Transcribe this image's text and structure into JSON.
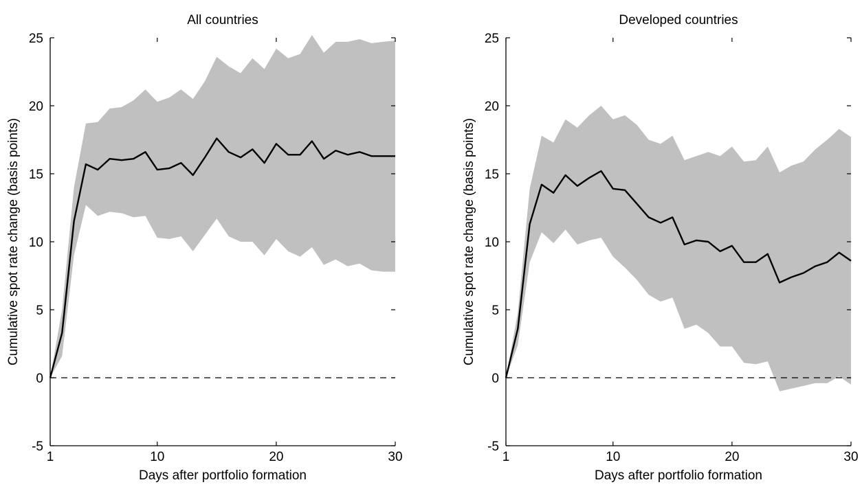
{
  "chart_data": [
    {
      "type": "line",
      "title": "All countries",
      "xlabel": "Days after portfolio formation",
      "ylabel": "Cumulative spot rate change (basis points)",
      "xlim": [
        1,
        30
      ],
      "ylim": [
        -5,
        25
      ],
      "xticks": [
        1,
        10,
        20,
        30
      ],
      "yticks": [
        -5,
        0,
        5,
        10,
        15,
        20,
        25
      ],
      "grid": false,
      "reference_line": 0,
      "x": [
        1,
        2,
        3,
        4,
        5,
        6,
        7,
        8,
        9,
        10,
        11,
        12,
        13,
        14,
        15,
        16,
        17,
        18,
        19,
        20,
        21,
        22,
        23,
        24,
        25,
        26,
        27,
        28,
        29,
        30
      ],
      "series": [
        {
          "values": [
            0,
            3.3,
            11.5,
            15.7,
            15.3,
            16.1,
            16.0,
            16.1,
            16.6,
            15.3,
            15.4,
            15.8,
            14.9,
            16.2,
            17.6,
            16.6,
            16.2,
            16.8,
            15.8,
            17.2,
            16.4,
            16.4,
            17.4,
            16.1,
            16.7,
            16.4,
            16.6,
            16.3,
            16.3,
            16.3
          ]
        }
      ],
      "band": {
        "upper": [
          0,
          5.0,
          14.0,
          18.7,
          18.8,
          19.8,
          19.9,
          20.4,
          21.2,
          20.3,
          20.6,
          21.2,
          20.5,
          21.8,
          23.6,
          22.9,
          22.4,
          23.5,
          22.7,
          24.2,
          23.5,
          23.8,
          25.2,
          23.9,
          24.7,
          24.7,
          24.9,
          24.6,
          24.7,
          24.8
        ],
        "lower": [
          0,
          1.6,
          9.0,
          12.7,
          11.9,
          12.2,
          12.1,
          11.8,
          11.9,
          10.3,
          10.2,
          10.4,
          9.3,
          10.5,
          11.7,
          10.4,
          10.0,
          10.0,
          9.0,
          10.2,
          9.3,
          8.9,
          9.6,
          8.3,
          8.7,
          8.2,
          8.4,
          7.9,
          7.8,
          7.8
        ]
      }
    },
    {
      "type": "line",
      "title": "Developed countries",
      "xlabel": "Days after portfolio formation",
      "ylabel": "Cumulative spot rate change (basis points)",
      "xlim": [
        1,
        30
      ],
      "ylim": [
        -5,
        25
      ],
      "xticks": [
        1,
        10,
        20,
        30
      ],
      "yticks": [
        -5,
        0,
        5,
        10,
        15,
        20,
        25
      ],
      "grid": false,
      "reference_line": 0,
      "x": [
        1,
        2,
        3,
        4,
        5,
        6,
        7,
        8,
        9,
        10,
        11,
        12,
        13,
        14,
        15,
        16,
        17,
        18,
        19,
        20,
        21,
        22,
        23,
        24,
        25,
        26,
        27,
        28,
        29,
        30
      ],
      "series": [
        {
          "values": [
            0,
            3.6,
            11.3,
            14.2,
            13.6,
            14.9,
            14.1,
            14.7,
            15.2,
            13.9,
            13.8,
            12.8,
            11.8,
            11.4,
            11.8,
            9.8,
            10.1,
            10.0,
            9.3,
            9.7,
            8.5,
            8.5,
            9.1,
            7.0,
            7.4,
            7.7,
            8.2,
            8.5,
            9.2,
            8.6
          ]
        }
      ],
      "band": {
        "upper": [
          0,
          4.8,
          13.9,
          17.8,
          17.3,
          19.0,
          18.4,
          19.3,
          20.0,
          19.0,
          19.3,
          18.6,
          17.5,
          17.2,
          17.8,
          16.0,
          16.3,
          16.6,
          16.3,
          17.0,
          15.9,
          16.0,
          17.0,
          15.1,
          15.6,
          15.9,
          16.8,
          17.5,
          18.3,
          17.7
        ],
        "lower": [
          0,
          2.4,
          8.5,
          10.7,
          9.9,
          10.9,
          9.8,
          10.1,
          10.3,
          8.9,
          8.1,
          7.2,
          6.1,
          5.6,
          5.9,
          3.6,
          3.9,
          3.3,
          2.3,
          2.3,
          1.1,
          1.0,
          1.2,
          -1.0,
          -0.8,
          -0.6,
          -0.4,
          -0.4,
          0.1,
          -0.5
        ]
      }
    }
  ]
}
